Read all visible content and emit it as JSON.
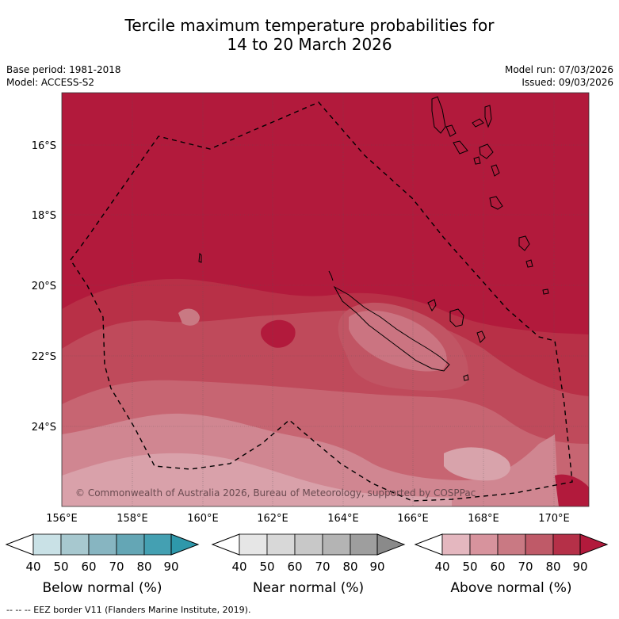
{
  "title_line1": "Tercile maximum temperature probabilities for",
  "title_line2": "14 to 20 March 2026",
  "meta_left": {
    "base_period": "Base period: 1981-2018",
    "model": "Model: ACCESS-S2"
  },
  "meta_right": {
    "model_run": "Model run: 07/03/2026",
    "issued": "Issued: 09/03/2026"
  },
  "lat_labels": [
    "16°S",
    "18°S",
    "20°S",
    "22°S",
    "24°S"
  ],
  "lon_labels": [
    "156°E",
    "158°E",
    "160°E",
    "162°E",
    "164°E",
    "166°E",
    "168°E",
    "170°E"
  ],
  "copyright": "© Commonwealth of Australia 2026, Bureau of Meteorology, supported by COSPPac",
  "legends": [
    {
      "title": "Below normal (%)",
      "ticks": [
        "40",
        "50",
        "60",
        "70",
        "80",
        "90"
      ],
      "colors": [
        "#ffffff",
        "#c9e1e6",
        "#a7c8cf",
        "#87b5c1",
        "#64a6b5",
        "#44a0b2",
        "#2e98ab"
      ]
    },
    {
      "title": "Near normal (%)",
      "ticks": [
        "40",
        "50",
        "60",
        "70",
        "80",
        "90"
      ],
      "colors": [
        "#ffffff",
        "#e6e6e6",
        "#d8d8d8",
        "#c8c8c8",
        "#b4b4b4",
        "#9e9e9e",
        "#8a8a8a"
      ]
    },
    {
      "title": "Above normal (%)",
      "ticks": [
        "40",
        "50",
        "60",
        "70",
        "80",
        "90"
      ],
      "colors": [
        "#ffffff",
        "#e4b7bf",
        "#d7939d",
        "#c97983",
        "#bf5a68",
        "#b53048",
        "#b21a3c"
      ]
    }
  ],
  "footer": "--  --  -- EEZ border V11 (Flanders Marine Institute, 2019)."
}
